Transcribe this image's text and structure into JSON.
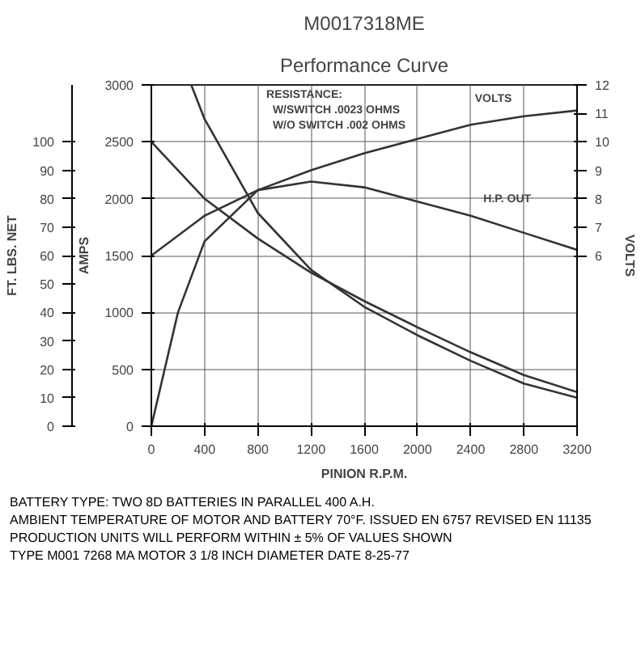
{
  "chart_data": {
    "type": "line",
    "title": "M0017318ME",
    "subtitle": "Performance Curve",
    "xlabel": "PINION R.P.M.",
    "ylabel": "AMPS",
    "y2label": "FT. LBS. NET",
    "y3label": "VOLTS",
    "xlim": [
      0,
      3200
    ],
    "xticks": [
      0,
      400,
      800,
      1200,
      1600,
      2000,
      2400,
      2800,
      3200
    ],
    "ylim": [
      0,
      3000
    ],
    "yticks": [
      0,
      500,
      1000,
      1500,
      2000,
      2500,
      3000
    ],
    "y2lim": [
      0,
      120
    ],
    "y2ticks": [
      0,
      10,
      20,
      30,
      40,
      50,
      60,
      70,
      80,
      90,
      100
    ],
    "y3lim": [
      0,
      12
    ],
    "y3ticks": [
      6,
      7,
      8,
      9,
      10,
      11,
      12
    ],
    "grid": true,
    "marker": "none",
    "line_style": "solid",
    "series": [
      {
        "color": "#333333",
        "x": [
          0,
          400,
          800,
          1200,
          1600,
          2000,
          2400,
          2800,
          3200
        ],
        "values": [
          2500,
          2000,
          1650,
          1350,
          1100,
          870,
          650,
          450,
          300
        ]
      },
      {
        "color": "#333333",
        "axis": "y2",
        "x": [
          300,
          400,
          800,
          1200,
          1600,
          2000,
          2400,
          2800,
          3200
        ],
        "values": [
          120,
          108,
          75,
          55,
          42,
          32,
          23,
          15,
          10
        ]
      },
      {
        "color": "#333333",
        "axis": "y3",
        "x": [
          0,
          200,
          400,
          800,
          1200,
          1600,
          2000,
          2400,
          2800,
          3200
        ],
        "values": [
          0,
          4,
          6.5,
          8.3,
          8.6,
          8.4,
          7.9,
          7.4,
          6.8,
          6.2
        ]
      },
      {
        "color": "#333333",
        "axis": "y3",
        "x": [
          0,
          400,
          800,
          1200,
          1600,
          2000,
          2400,
          2800,
          3200
        ],
        "values": [
          6,
          7.4,
          8.3,
          9.0,
          9.6,
          10.1,
          10.6,
          10.9,
          11.1
        ]
      }
    ],
    "annotations": [
      "RESISTANCE:",
      "W/SWITCH .0023 OHMS",
      "W/O SWITCH .002 OHMS",
      "VOLTS",
      "H.P. OUT",
      "BATTERY TYPE: TWO 8D BATTERIES IN PARALLEL 400 A.H.",
      "AMBIENT TEMPERATURE OF MOTOR AND BATTERY 70°F.   ISSUED EN 6757   REVISED EN 11135",
      "PRODUCTION UNITS WILL PERFORM WITHIN ± 5% OF VALUES SHOWN",
      "TYPE M001 7268 MA MOTOR   3 1/8 INCH DIAMETER   DATE 8-25-77"
    ]
  }
}
